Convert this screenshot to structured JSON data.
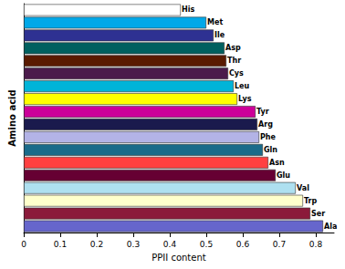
{
  "chart_data": {
    "type": "bar",
    "orientation": "horizontal",
    "x_label": "PPII content",
    "y_label": "Amino acid",
    "categories": [
      "His",
      "Met",
      "Ile",
      "Asp",
      "Thr",
      "Cys",
      "Leu",
      "Lys",
      "Tyr",
      "Arg",
      "Phe",
      "Gln",
      "Asn",
      "Glu",
      "Val",
      "Trp",
      "Ser",
      "Ala"
    ],
    "values": [
      0.43,
      0.5,
      0.52,
      0.55,
      0.555,
      0.56,
      0.575,
      0.585,
      0.635,
      0.64,
      0.645,
      0.655,
      0.67,
      0.69,
      0.745,
      0.765,
      0.785,
      0.82
    ],
    "colors": [
      "#ffffff",
      "#00a8e8",
      "#2e3192",
      "#00605f",
      "#5a1a00",
      "#4b1a4b",
      "#00b4d8",
      "#ffff00",
      "#cc0099",
      "#1a1a4d",
      "#b3b3e6",
      "#1a6b8a",
      "#ff4040",
      "#660033",
      "#aee0f0",
      "#ffffcc",
      "#8b1a3a",
      "#6666cc"
    ],
    "xlim": [
      0,
      0.85
    ],
    "xticks": [
      0,
      0.1,
      0.2,
      0.3,
      0.4,
      0.5,
      0.6,
      0.7,
      0.8
    ],
    "tick_labels": "x",
    "grid": false
  }
}
